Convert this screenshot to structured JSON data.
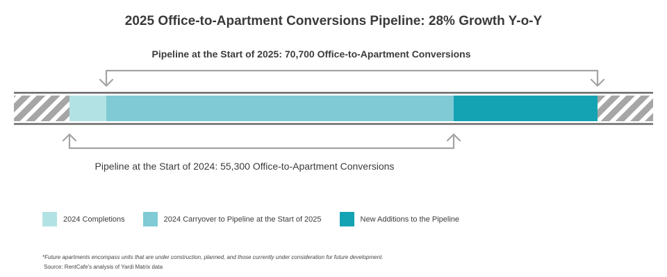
{
  "chart_data": {
    "type": "bar",
    "orientation": "horizontal-stacked",
    "title": "2025 Office-to-Apartment Conversions Pipeline: 28% Growth Y-o-Y",
    "segments": [
      {
        "name": "2024 Completions",
        "value": 5300,
        "color": "#b3e2e4"
      },
      {
        "name": "2024 Carryover to Pipeline at the Start of 2025",
        "value": 50000,
        "color": "#7fcad5"
      },
      {
        "name": "New Additions to the Pipeline",
        "value": 20700,
        "color": "#14a3b3"
      }
    ],
    "annotations": [
      {
        "label": "Pipeline at the Start of 2025: 70,700 Office-to-Apartment Conversions",
        "value": 70700,
        "covers": [
          "2024 Carryover to Pipeline at the Start of 2025",
          "New Additions to the Pipeline"
        ],
        "side": "top"
      },
      {
        "label": "Pipeline at the Start of 2024: 55,300 Office-to-Apartment Conversions",
        "value": 55300,
        "covers": [
          "2024 Completions",
          "2024 Carryover to Pipeline at the Start of 2025"
        ],
        "side": "bottom"
      }
    ],
    "legend_position": "bottom-left",
    "footnote": "*Future apartments encompass units that are under construction, planned, and those currently under consideration for future development.",
    "source": "Source: RentCafe's analysis of Yardi Matrix data"
  },
  "colors": {
    "hatch": "#a6a6a6",
    "bar_rule": "#666666",
    "bracket": "#a3a3a3"
  }
}
